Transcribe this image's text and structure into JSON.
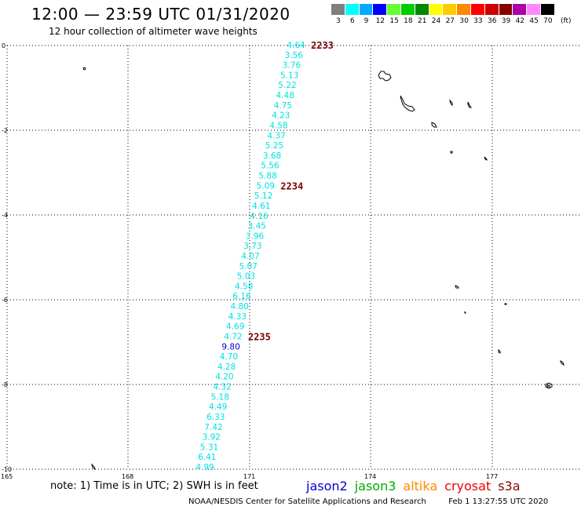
{
  "header": {
    "title": "12:00 — 23:59 UTC 01/31/2020",
    "subtitle": "12 hour collection of altimeter wave heights"
  },
  "legend": {
    "labels": [
      "3",
      "6",
      "9",
      "12",
      "15",
      "18",
      "21",
      "24",
      "27",
      "30",
      "33",
      "36",
      "39",
      "42",
      "45",
      "70"
    ],
    "unit": "(ft)",
    "colors": [
      "#7f7f7f",
      "#00ffff",
      "#00aaff",
      "#0000ff",
      "#66ff33",
      "#00cc00",
      "#008800",
      "#ffff00",
      "#ffcc00",
      "#ff8800",
      "#ff0000",
      "#cc0000",
      "#880000",
      "#aa00aa",
      "#ff88ff",
      "#000000"
    ]
  },
  "axes": {
    "lat_labels": [
      "0",
      "-2",
      "-4",
      "-6",
      "-8",
      "-10"
    ],
    "lon_labels": [
      "165",
      "168",
      "171",
      "174",
      "177"
    ]
  },
  "track": {
    "swh_values": [
      "4.64",
      "3.56",
      "3.76",
      "5.13",
      "5.22",
      "4.48",
      "4.75",
      "4.23",
      "4.58",
      "4.37",
      "5.25",
      "3.68",
      "5.56",
      "5.88",
      "5.09",
      "5.12",
      "4.61",
      "4.16",
      "3.45",
      "3.96",
      "3.73",
      "4.07",
      "5.07",
      "5.03",
      "4.58",
      "6.16",
      "4.80",
      "4.33",
      "4.69",
      "4.72",
      "9.80",
      "4.70",
      "4.28",
      "4.20",
      "4.32",
      "5.18",
      "4.49",
      "6.33",
      "7.42",
      "3.92",
      "5.31",
      "6.41",
      "4.99"
    ],
    "time_labels": [
      {
        "text": "2233",
        "index": 0
      },
      {
        "text": "2234",
        "index": 14
      },
      {
        "text": "2235",
        "index": 29
      }
    ],
    "low_color": "#00e0e0",
    "high_color": "#0000cc"
  },
  "notes": {
    "note": "note:  1) Time is in UTC;  2) SWH is in feet"
  },
  "satellites": [
    {
      "name": "jason2",
      "color": "#0000cc"
    },
    {
      "name": "jason3",
      "color": "#00aa00"
    },
    {
      "name": "altika",
      "color": "#ff8800"
    },
    {
      "name": "cryosat",
      "color": "#ee0000"
    },
    {
      "name": "s3a",
      "color": "#880000"
    }
  ],
  "footer": {
    "credit": "NOAA/NESDIS Center for Satellite Applications and Research",
    "timestamp": "Feb  1 13:27:55 UTC 2020"
  }
}
